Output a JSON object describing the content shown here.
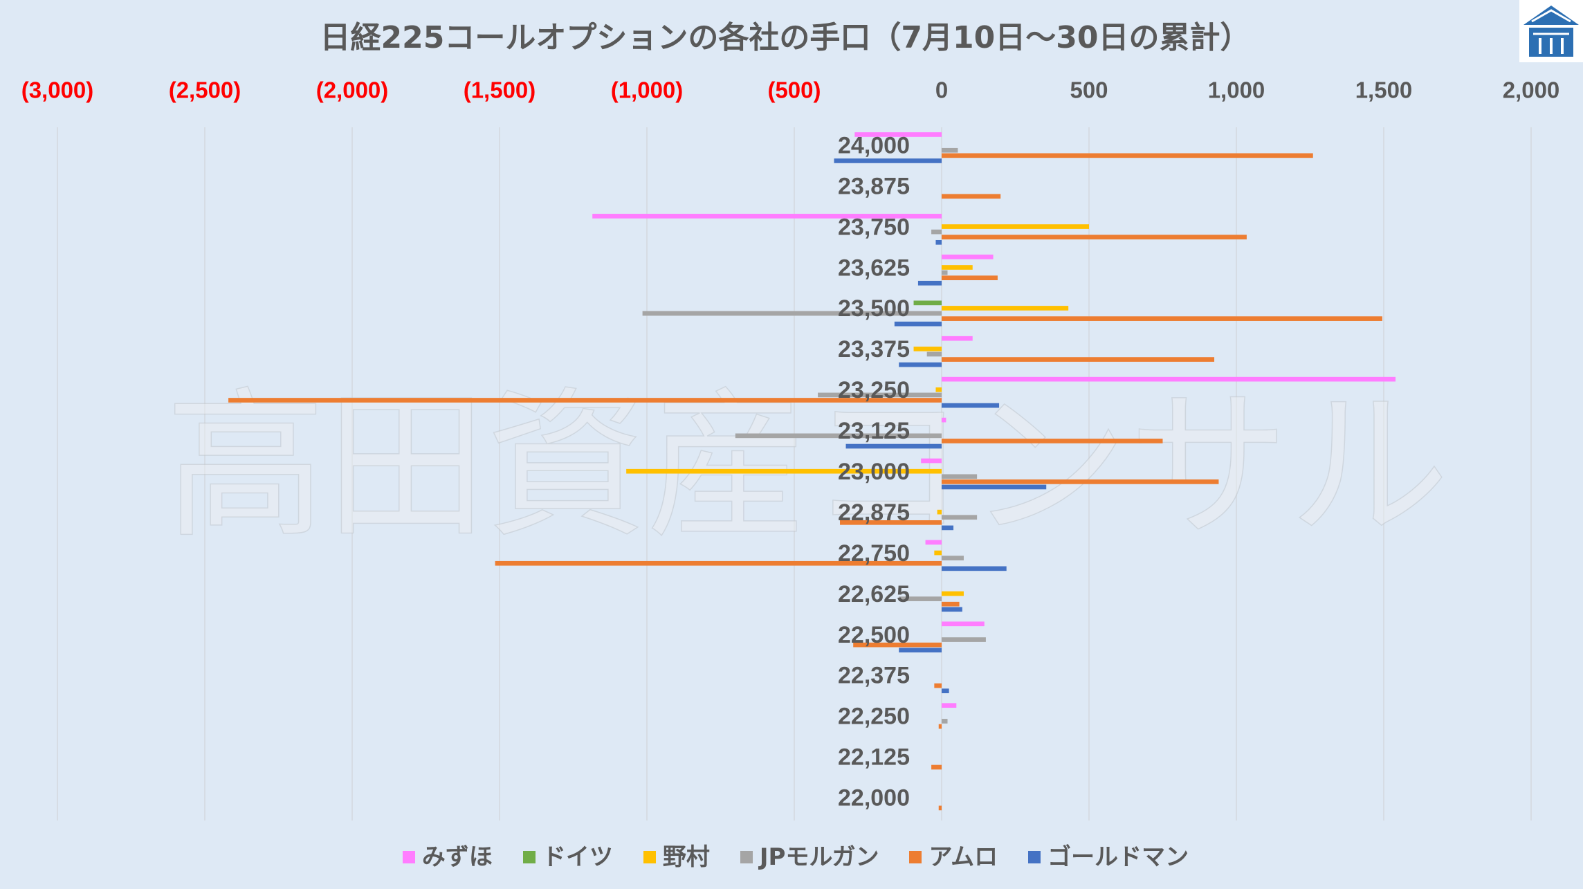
{
  "colors": {
    "background": "#dee9f5",
    "text": "#595959",
    "grid": "#d3d8de"
  },
  "watermark": "高田資産コンサル",
  "logo": {
    "icon": "house-logo-icon",
    "color": "#2c6fb3"
  },
  "chart_data": {
    "type": "bar",
    "orientation": "horizontal",
    "title": "日経225コールオプションの各社の手口（7月10日～30日の累計）",
    "categories": [
      "24,000",
      "23,875",
      "23,750",
      "23,625",
      "23,500",
      "23,375",
      "23,250",
      "23,125",
      "23,000",
      "22,875",
      "22,750",
      "22,625",
      "22,500",
      "22,375",
      "22,250",
      "22,125",
      "22,000"
    ],
    "x_axis": {
      "position": "top",
      "range": [
        -3000,
        2000
      ],
      "tick_values": [
        -3000,
        -2500,
        -2000,
        -1500,
        -1000,
        -500,
        0,
        500,
        1000,
        1500,
        2000
      ],
      "tick_labels": [
        "(3,000)",
        "(2,500)",
        "(2,000)",
        "(1,500)",
        "(1,000)",
        "(500)",
        "0",
        "500",
        "1,000",
        "1,500",
        "2,000"
      ],
      "negative_label_color": "#ff0000",
      "label_color": "#595959"
    },
    "grid": true,
    "legend": "bottom",
    "series": [
      {
        "name": "みずほ",
        "color": "#ff7dff",
        "values": [
          -295,
          0,
          -1185,
          175,
          0,
          105,
          1540,
          15,
          -70,
          0,
          -55,
          0,
          145,
          0,
          50,
          0,
          0
        ]
      },
      {
        "name": "ドイツ",
        "color": "#70ad47",
        "values": [
          0,
          0,
          0,
          0,
          -95,
          0,
          0,
          0,
          0,
          0,
          0,
          0,
          0,
          0,
          0,
          0,
          0
        ]
      },
      {
        "name": "野村",
        "color": "#ffc000",
        "values": [
          0,
          0,
          500,
          105,
          430,
          -95,
          -20,
          0,
          -1070,
          -15,
          -25,
          75,
          0,
          0,
          0,
          0,
          0
        ]
      },
      {
        "name": "JPモルガン",
        "color": "#a5a5a5",
        "values": [
          55,
          0,
          -35,
          20,
          -1015,
          -50,
          -420,
          -700,
          120,
          120,
          75,
          -145,
          150,
          0,
          20,
          0,
          0
        ]
      },
      {
        "name": "アムロ",
        "color": "#ed7d31",
        "values": [
          1260,
          200,
          1035,
          190,
          1495,
          925,
          -2420,
          750,
          940,
          -345,
          -1515,
          60,
          -300,
          -25,
          -10,
          -35,
          -10
        ]
      },
      {
        "name": "ゴールドマン",
        "color": "#4472c4",
        "values": [
          -365,
          0,
          -20,
          -80,
          -160,
          -145,
          195,
          -325,
          355,
          40,
          220,
          70,
          -145,
          25,
          0,
          0,
          0
        ]
      }
    ]
  }
}
